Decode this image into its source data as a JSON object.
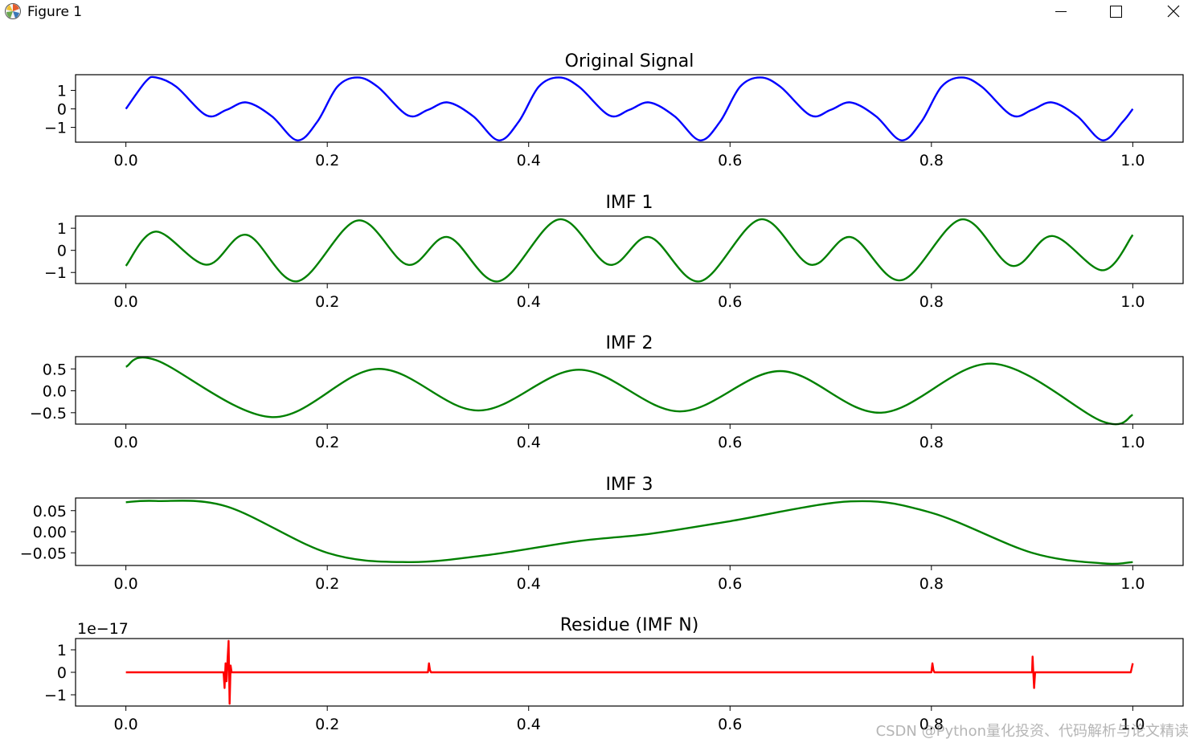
{
  "window": {
    "title": "Figure 1",
    "icon": "matplotlib-icon",
    "controls": [
      "minimize-icon",
      "maximize-icon",
      "close-icon"
    ]
  },
  "watermark": "CSDN @Python量化投资、代码解析与论文精读",
  "chart_data": [
    {
      "type": "line",
      "title": "Original Signal",
      "color": "#0000ff",
      "xlim": [
        -0.05,
        1.05
      ],
      "ylim": [
        -1.8,
        1.85
      ],
      "xticks": [
        0.0,
        0.2,
        0.4,
        0.6,
        0.8,
        1.0
      ],
      "xtick_labels": [
        "0.0",
        "0.2",
        "0.4",
        "0.6",
        "0.8",
        "1.0"
      ],
      "yticks": [
        1,
        0,
        -1
      ],
      "ytick_labels": [
        "1",
        "0",
        "−1"
      ],
      "x": [
        0,
        0.02,
        0.03,
        0.05,
        0.08,
        0.1,
        0.12,
        0.145,
        0.17,
        0.19,
        0.21,
        0.23,
        0.25,
        0.28,
        0.3,
        0.32,
        0.345,
        0.37,
        0.39,
        0.41,
        0.43,
        0.45,
        0.48,
        0.5,
        0.52,
        0.545,
        0.57,
        0.59,
        0.61,
        0.63,
        0.65,
        0.68,
        0.7,
        0.72,
        0.745,
        0.77,
        0.79,
        0.81,
        0.83,
        0.85,
        0.88,
        0.9,
        0.92,
        0.945,
        0.97,
        0.99,
        1.0
      ],
      "y": [
        0,
        1.5,
        1.7,
        1.2,
        -0.35,
        -0.05,
        0.35,
        -0.4,
        -1.7,
        -0.7,
        1.2,
        1.7,
        1.2,
        -0.35,
        -0.05,
        0.35,
        -0.4,
        -1.7,
        -0.7,
        1.2,
        1.7,
        1.2,
        -0.35,
        -0.05,
        0.35,
        -0.4,
        -1.7,
        -0.7,
        1.2,
        1.7,
        1.2,
        -0.35,
        -0.05,
        0.35,
        -0.4,
        -1.7,
        -0.7,
        1.2,
        1.7,
        1.2,
        -0.35,
        -0.05,
        0.35,
        -0.4,
        -1.7,
        -0.7,
        0.0
      ]
    },
    {
      "type": "line",
      "title": "IMF 1",
      "color": "#008000",
      "xlim": [
        -0.05,
        1.05
      ],
      "ylim": [
        -1.5,
        1.55
      ],
      "xticks": [
        0.0,
        0.2,
        0.4,
        0.6,
        0.8,
        1.0
      ],
      "xtick_labels": [
        "0.0",
        "0.2",
        "0.4",
        "0.6",
        "0.8",
        "1.0"
      ],
      "yticks": [
        1,
        0,
        -1
      ],
      "ytick_labels": [
        "1",
        "0",
        "−1"
      ],
      "x": [
        0,
        0.03,
        0.08,
        0.12,
        0.17,
        0.23,
        0.28,
        0.32,
        0.37,
        0.43,
        0.48,
        0.52,
        0.57,
        0.63,
        0.68,
        0.72,
        0.77,
        0.83,
        0.88,
        0.92,
        0.97,
        1.0
      ],
      "y": [
        -0.7,
        0.85,
        -0.65,
        0.7,
        -1.4,
        1.35,
        -0.65,
        0.6,
        -1.4,
        1.4,
        -0.65,
        0.6,
        -1.4,
        1.4,
        -0.65,
        0.6,
        -1.35,
        1.4,
        -0.7,
        0.65,
        -0.9,
        0.7
      ]
    },
    {
      "type": "line",
      "title": "IMF 2",
      "color": "#008000",
      "xlim": [
        -0.05,
        1.05
      ],
      "ylim": [
        -0.76,
        0.78
      ],
      "xticks": [
        0.0,
        0.2,
        0.4,
        0.6,
        0.8,
        1.0
      ],
      "xtick_labels": [
        "0.0",
        "0.2",
        "0.4",
        "0.6",
        "0.8",
        "1.0"
      ],
      "yticks": [
        0.5,
        0.0,
        -0.5
      ],
      "ytick_labels": [
        "0.5",
        "0.0",
        "−0.5"
      ],
      "x": [
        0,
        0.03,
        0.145,
        0.25,
        0.35,
        0.45,
        0.55,
        0.65,
        0.75,
        0.86,
        0.97,
        1.0
      ],
      "y": [
        0.55,
        0.7,
        -0.6,
        0.5,
        -0.45,
        0.48,
        -0.47,
        0.45,
        -0.5,
        0.62,
        -0.7,
        -0.55
      ]
    },
    {
      "type": "line",
      "title": "IMF 3",
      "color": "#008000",
      "xlim": [
        -0.05,
        1.05
      ],
      "ylim": [
        -0.08,
        0.08
      ],
      "xticks": [
        0.0,
        0.2,
        0.4,
        0.6,
        0.8,
        1.0
      ],
      "xtick_labels": [
        "0.0",
        "0.2",
        "0.4",
        "0.6",
        "0.8",
        "1.0"
      ],
      "yticks": [
        0.05,
        0.0,
        -0.05
      ],
      "ytick_labels": [
        "0.05",
        "0.00",
        "−0.05"
      ],
      "x": [
        0,
        0.03,
        0.1,
        0.2,
        0.28,
        0.36,
        0.45,
        0.52,
        0.6,
        0.72,
        0.8,
        0.9,
        0.97,
        1.0
      ],
      "y": [
        0.07,
        0.073,
        0.06,
        -0.05,
        -0.072,
        -0.055,
        -0.022,
        -0.005,
        0.025,
        0.072,
        0.045,
        -0.05,
        -0.075,
        -0.072
      ]
    },
    {
      "type": "line",
      "title": "Residue (IMF N)",
      "color": "#ff0000",
      "y_offset_label": "1e−17",
      "xlim": [
        -0.05,
        1.05
      ],
      "ylim": [
        -1.5,
        1.5
      ],
      "xticks": [
        0.0,
        0.2,
        0.4,
        0.6,
        0.8,
        1.0
      ],
      "xtick_labels": [
        "0.0",
        "0.2",
        "0.4",
        "0.6",
        "0.8",
        "1.0"
      ],
      "yticks": [
        1,
        0,
        -1
      ],
      "ytick_labels": [
        "1",
        "0",
        "−1"
      ],
      "x": [
        0,
        0.097,
        0.098,
        0.099,
        0.1,
        0.101,
        0.102,
        0.103,
        0.104,
        0.105,
        0.3,
        0.301,
        0.302,
        0.303,
        0.8,
        0.801,
        0.802,
        0.803,
        0.9,
        0.9005,
        0.901,
        0.902,
        0.903,
        0.997,
        0.998,
        0.999,
        1.0
      ],
      "y": [
        0,
        0,
        -0.7,
        0.4,
        -0.4,
        0.6,
        1.4,
        -1.4,
        0.3,
        0,
        0,
        0.4,
        0.1,
        0,
        0,
        0.4,
        0.1,
        0,
        0,
        0.7,
        0.2,
        -0.7,
        0,
        0,
        0,
        0.2,
        0.4
      ]
    }
  ]
}
